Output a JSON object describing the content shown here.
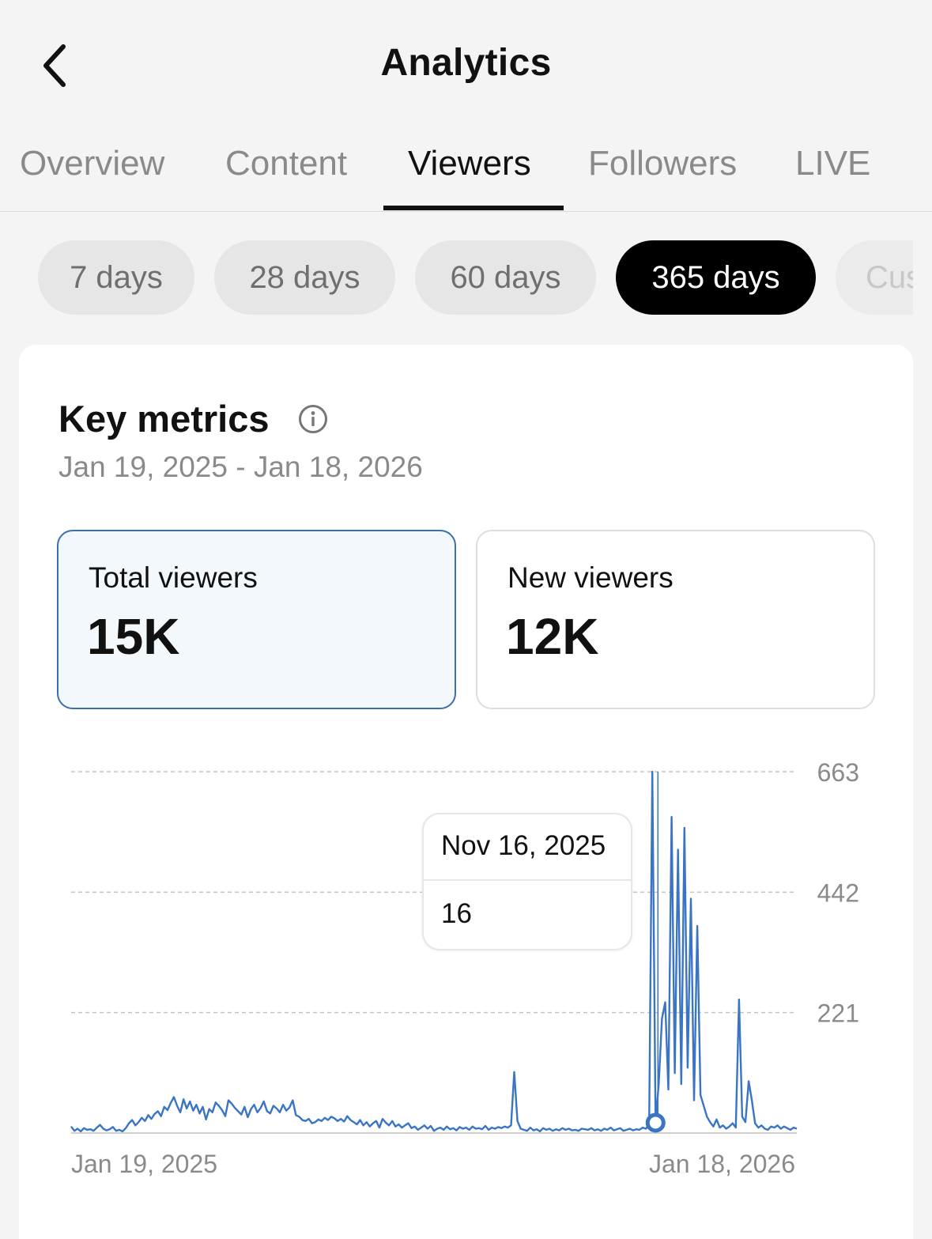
{
  "header": {
    "title": "Analytics",
    "back_icon": "chevron-left-icon"
  },
  "tabs": [
    {
      "label": "Overview",
      "active": false
    },
    {
      "label": "Content",
      "active": false
    },
    {
      "label": "Viewers",
      "active": true
    },
    {
      "label": "Followers",
      "active": false
    },
    {
      "label": "LIVE",
      "active": false
    }
  ],
  "ranges": [
    {
      "label": "7 days",
      "active": false
    },
    {
      "label": "28 days",
      "active": false
    },
    {
      "label": "60 days",
      "active": false
    },
    {
      "label": "365 days",
      "active": true
    },
    {
      "label": "Cus",
      "active": false
    }
  ],
  "key_metrics": {
    "title": "Key metrics",
    "info_icon": "info-icon",
    "date_range": "Jan 19, 2025 - Jan 18, 2026",
    "cards": [
      {
        "label": "Total viewers",
        "value": "15K",
        "selected": true
      },
      {
        "label": "New viewers",
        "value": "12K",
        "selected": false
      }
    ]
  },
  "tooltip": {
    "date": "Nov 16, 2025",
    "value": "16"
  },
  "colors": {
    "line": "#3a74c4",
    "selected_border": "#3d6fa8",
    "selected_bg": "#f3f8fc"
  },
  "chart_data": {
    "type": "line",
    "series": [
      {
        "values": [
          12,
          4,
          8,
          3,
          9,
          6,
          7,
          4,
          10,
          15,
          8,
          5,
          7,
          11,
          4,
          6,
          3,
          9,
          18,
          24,
          14,
          20,
          28,
          22,
          33,
          26,
          35,
          40,
          31,
          48,
          42,
          55,
          66,
          50,
          38,
          62,
          45,
          58,
          41,
          52,
          36,
          48,
          25,
          44,
          38,
          56,
          50,
          42,
          31,
          60,
          54,
          46,
          40,
          34,
          48,
          29,
          44,
          52,
          38,
          46,
          58,
          40,
          36,
          50,
          45,
          38,
          52,
          41,
          47,
          60,
          33,
          30,
          24,
          22,
          26,
          18,
          20,
          25,
          22,
          28,
          24,
          30,
          27,
          22,
          26,
          21,
          31,
          24,
          20,
          16,
          24,
          14,
          20,
          12,
          18,
          22,
          10,
          26,
          19,
          14,
          22,
          12,
          16,
          10,
          14,
          18,
          9,
          12,
          6,
          10,
          14,
          8,
          13,
          4,
          8,
          10,
          6,
          12,
          7,
          9,
          5,
          11,
          8,
          10,
          6,
          12,
          8,
          9,
          7,
          13,
          6,
          10,
          8,
          11,
          9,
          12,
          10,
          14,
          112,
          22,
          8,
          6,
          4,
          10,
          5,
          7,
          3,
          9,
          6,
          8,
          4,
          7,
          5,
          9,
          6,
          8,
          5,
          6,
          4,
          8,
          7,
          6,
          9,
          5,
          7,
          4,
          8,
          6,
          10,
          5,
          7,
          9,
          4,
          6,
          8,
          5,
          7,
          6,
          10,
          8,
          16,
          663,
          20,
          90,
          210,
          240,
          80,
          580,
          110,
          520,
          90,
          560,
          120,
          430,
          60,
          380,
          70,
          50,
          30,
          20,
          12,
          25,
          10,
          14,
          8,
          12,
          18,
          10,
          245,
          30,
          20,
          95,
          60,
          18,
          10,
          14,
          8,
          6,
          12,
          10,
          14,
          8,
          12,
          9,
          6,
          10,
          8
        ],
        "highlight": {
          "date": "Nov 16, 2025",
          "value": 16
        }
      }
    ],
    "x_labels": [
      "Jan 19, 2025",
      "Jan 18, 2026"
    ],
    "y_ticks": [
      221,
      442,
      663
    ],
    "ylim": [
      0,
      663
    ],
    "grid": true
  }
}
